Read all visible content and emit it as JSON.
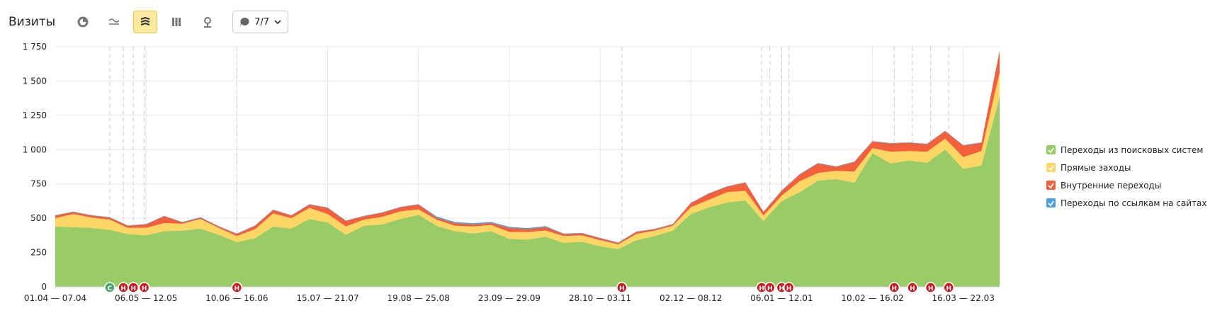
{
  "header": {
    "title": "Визиты",
    "counter": "7/7"
  },
  "chart_data": {
    "type": "stacked-area",
    "categories": [
      "01.04 — 07.04",
      null,
      null,
      null,
      null,
      "06.05 — 12.05",
      null,
      null,
      null,
      null,
      "10.06 — 16.06",
      null,
      null,
      null,
      null,
      "15.07 — 21.07",
      null,
      null,
      null,
      null,
      "19.08 — 25.08",
      null,
      null,
      null,
      null,
      "23.09 — 29.09",
      null,
      null,
      null,
      null,
      "28.10 — 03.11",
      null,
      null,
      null,
      null,
      "02.12 — 08.12",
      null,
      null,
      null,
      null,
      "06.01 — 12.01",
      null,
      null,
      null,
      null,
      "10.02 — 16.02",
      null,
      null,
      null,
      null,
      "16.03 — 22.03",
      null,
      null
    ],
    "series": [
      {
        "name": "Переходы из поисковых систем",
        "color": "#99cc66",
        "values": [
          440,
          435,
          430,
          415,
          385,
          375,
          405,
          410,
          425,
          380,
          325,
          355,
          440,
          425,
          495,
          470,
          380,
          445,
          455,
          495,
          525,
          445,
          405,
          390,
          405,
          350,
          345,
          365,
          320,
          330,
          295,
          275,
          340,
          370,
          410,
          530,
          580,
          615,
          630,
          480,
          625,
          690,
          775,
          785,
          760,
          975,
          900,
          920,
          905,
          1000,
          860,
          885,
          1385
        ]
      },
      {
        "name": "Прямые заходы",
        "color": "#fdd663",
        "values": [
          60,
          95,
          75,
          75,
          45,
          55,
          60,
          50,
          70,
          50,
          45,
          65,
          95,
          75,
          80,
          60,
          60,
          45,
          55,
          55,
          40,
          45,
          40,
          50,
          45,
          50,
          55,
          45,
          50,
          45,
          45,
          35,
          45,
          40,
          35,
          50,
          55,
          75,
          70,
          40,
          40,
          80,
          55,
          60,
          80,
          35,
          85,
          70,
          80,
          80,
          85,
          105,
          175
        ]
      },
      {
        "name": "Внутренние переходы",
        "color": "#f4603c",
        "values": [
          20,
          15,
          15,
          15,
          15,
          25,
          50,
          10,
          10,
          10,
          15,
          25,
          25,
          20,
          25,
          45,
          40,
          25,
          30,
          30,
          35,
          15,
          20,
          15,
          15,
          30,
          20,
          25,
          15,
          15,
          15,
          10,
          15,
          10,
          10,
          30,
          45,
          40,
          60,
          25,
          35,
          50,
          70,
          30,
          70,
          50,
          60,
          60,
          55,
          55,
          85,
          60,
          160
        ]
      },
      {
        "name": "Переходы по ссылкам на сайтах",
        "color": "#4d9fe0",
        "values": [
          3,
          3,
          3,
          3,
          3,
          3,
          3,
          3,
          3,
          3,
          3,
          3,
          3,
          3,
          3,
          3,
          3,
          3,
          3,
          3,
          3,
          8,
          8,
          8,
          8,
          8,
          8,
          8,
          3,
          3,
          3,
          3,
          3,
          3,
          3,
          3,
          3,
          3,
          3,
          3,
          3,
          3,
          3,
          3,
          3,
          3,
          3,
          3,
          3,
          3,
          3,
          3,
          3
        ]
      }
    ],
    "ylim": [
      0,
      1750
    ],
    "yticks": [
      0,
      250,
      500,
      750,
      {
        "value": 1000,
        "label": "1 000"
      },
      {
        "value": 1250,
        "label": "1 250"
      },
      {
        "value": 1500,
        "label": "1 500"
      },
      {
        "value": 1750,
        "label": "1 750"
      }
    ],
    "grid": true,
    "legend": "right",
    "annotations": [
      {
        "at": 3,
        "label": "С",
        "color": "#4aa36b"
      },
      {
        "at": 3.75,
        "label": "Н",
        "color": "#c8141e"
      },
      {
        "at": 4.3,
        "label": "Н",
        "color": "#c8141e"
      },
      {
        "at": 4.9,
        "label": "Н",
        "color": "#c8141e"
      },
      {
        "at": 10,
        "label": "Н",
        "color": "#c8141e"
      },
      {
        "at": 31.2,
        "label": "Н",
        "color": "#c8141e"
      },
      {
        "at": 38.9,
        "label": "Н",
        "color": "#c8141e"
      },
      {
        "at": 39.35,
        "label": "Н",
        "color": "#c8141e"
      },
      {
        "at": 40,
        "label": "Н",
        "color": "#c8141e"
      },
      {
        "at": 40.4,
        "label": "Н",
        "color": "#c8141e"
      },
      {
        "at": 46.2,
        "label": "Н",
        "color": "#c8141e"
      },
      {
        "at": 47.2,
        "label": "Н",
        "color": "#c8141e"
      },
      {
        "at": 48.2,
        "label": "Н",
        "color": "#c8141e"
      },
      {
        "at": 49.2,
        "label": "Н",
        "color": "#c8141e"
      }
    ]
  }
}
